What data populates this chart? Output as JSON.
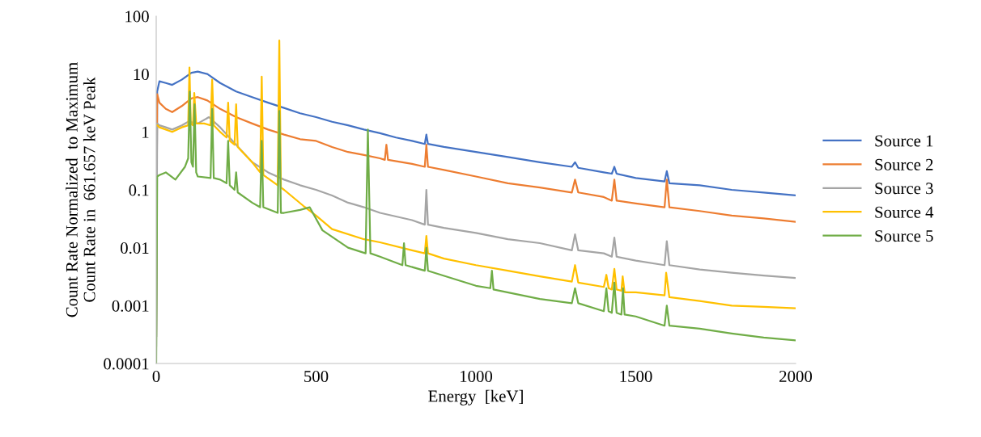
{
  "chart_data": {
    "type": "line",
    "xlabel": "Energy  [keV]",
    "ylabel": "Count Rate Normalized  to Maximum\nCount Rate in  661.657 keV Peak",
    "log": "y",
    "grid": false,
    "legend": "right",
    "marker": "none",
    "line_style": "solid",
    "xlim": [
      0,
      2000
    ],
    "xticks": [
      0,
      500,
      1000,
      1500,
      2000
    ],
    "ylim": [
      0.0001,
      100
    ],
    "yticks": [
      {
        "value": 0.0001,
        "label": "0.0001"
      },
      {
        "value": 0.001,
        "label": "0.001"
      },
      {
        "value": 0.01,
        "label": "0.01"
      },
      {
        "value": 0.1,
        "label": "0.1"
      },
      {
        "value": 1,
        "label": "1"
      },
      {
        "value": 10,
        "label": "10"
      },
      {
        "value": 100,
        "label": "100"
      }
    ],
    "series": [
      {
        "name": "Source 1",
        "color": "#4472c4",
        "x": [
          0,
          3,
          10,
          30,
          50,
          80,
          110,
          130,
          160,
          200,
          250,
          300,
          350,
          400,
          450,
          500,
          550,
          600,
          650,
          700,
          750,
          800,
          840,
          845,
          850,
          900,
          1000,
          1100,
          1200,
          1300,
          1310,
          1320,
          1400,
          1425,
          1433,
          1440,
          1500,
          1590,
          1597,
          1605,
          1700,
          1800,
          1900,
          2000
        ],
        "values": [
          0.0003,
          5,
          7.5,
          7,
          6.5,
          8,
          10.5,
          11,
          10,
          7,
          5,
          4,
          3.2,
          2.6,
          2.1,
          1.8,
          1.5,
          1.3,
          1.1,
          0.95,
          0.8,
          0.7,
          0.62,
          0.9,
          0.62,
          0.55,
          0.45,
          0.37,
          0.3,
          0.25,
          0.3,
          0.24,
          0.2,
          0.19,
          0.25,
          0.19,
          0.16,
          0.14,
          0.21,
          0.13,
          0.12,
          0.1,
          0.09,
          0.08
        ]
      },
      {
        "name": "Source 2",
        "color": "#ed7d31",
        "x": [
          0,
          3,
          10,
          30,
          50,
          80,
          110,
          130,
          160,
          200,
          250,
          300,
          350,
          400,
          450,
          500,
          550,
          600,
          650,
          700,
          715,
          720,
          725,
          800,
          840,
          845,
          850,
          900,
          1000,
          1100,
          1200,
          1300,
          1310,
          1320,
          1400,
          1425,
          1433,
          1440,
          1500,
          1590,
          1597,
          1605,
          1700,
          1800,
          1900,
          2000
        ],
        "values": [
          0.0003,
          4.5,
          3.2,
          2.5,
          2.2,
          2.8,
          3.8,
          4,
          3.5,
          2.5,
          1.8,
          1.4,
          1.1,
          0.9,
          0.75,
          0.7,
          0.55,
          0.45,
          0.4,
          0.35,
          0.33,
          0.6,
          0.33,
          0.28,
          0.25,
          0.6,
          0.25,
          0.22,
          0.17,
          0.13,
          0.11,
          0.09,
          0.15,
          0.09,
          0.075,
          0.065,
          0.15,
          0.065,
          0.058,
          0.05,
          0.15,
          0.05,
          0.043,
          0.036,
          0.032,
          0.028
        ]
      },
      {
        "name": "Source 3",
        "color": "#a5a5a5",
        "x": [
          0,
          3,
          10,
          30,
          50,
          80,
          100,
          130,
          165,
          200,
          250,
          300,
          350,
          400,
          450,
          500,
          550,
          600,
          650,
          700,
          800,
          840,
          845,
          850,
          900,
          1000,
          1100,
          1200,
          1300,
          1310,
          1320,
          1400,
          1425,
          1433,
          1440,
          1500,
          1590,
          1597,
          1605,
          1700,
          1800,
          1900,
          2000
        ],
        "values": [
          0.0002,
          1.4,
          1.3,
          1.2,
          1.1,
          1.3,
          1.5,
          1.4,
          1.8,
          1.2,
          0.6,
          0.3,
          0.2,
          0.15,
          0.12,
          0.1,
          0.08,
          0.06,
          0.05,
          0.04,
          0.03,
          0.025,
          0.1,
          0.025,
          0.022,
          0.018,
          0.014,
          0.012,
          0.009,
          0.017,
          0.009,
          0.008,
          0.007,
          0.015,
          0.007,
          0.006,
          0.005,
          0.013,
          0.005,
          0.0042,
          0.0037,
          0.0033,
          0.003
        ]
      },
      {
        "name": "Source 4",
        "color": "#ffc000",
        "x": [
          3,
          10,
          30,
          50,
          80,
          100,
          104,
          108,
          115,
          119,
          125,
          150,
          170,
          175,
          180,
          200,
          220,
          225,
          230,
          245,
          250,
          255,
          300,
          325,
          330,
          335,
          380,
          385,
          390,
          400,
          460,
          500,
          550,
          650,
          700,
          800,
          840,
          845,
          850,
          900,
          1000,
          1100,
          1200,
          1300,
          1310,
          1320,
          1400,
          1408,
          1415,
          1425,
          1433,
          1440,
          1455,
          1459,
          1465,
          1500,
          1590,
          1595,
          1605,
          1700,
          1800,
          1900,
          2000
        ],
        "values": [
          1.3,
          1.2,
          1.1,
          1,
          1.2,
          1.3,
          13,
          1.4,
          1.3,
          4.7,
          1.4,
          1.4,
          1.3,
          8,
          1.3,
          1,
          0.8,
          3.2,
          0.7,
          0.6,
          3,
          0.55,
          0.3,
          0.2,
          9,
          0.18,
          0.12,
          38,
          0.11,
          0.1,
          0.053,
          0.036,
          0.021,
          0.014,
          0.0124,
          0.009,
          0.008,
          0.016,
          0.008,
          0.0065,
          0.005,
          0.004,
          0.0032,
          0.0026,
          0.005,
          0.0025,
          0.0021,
          0.0034,
          0.002,
          0.0019,
          0.0043,
          0.0019,
          0.0018,
          0.0032,
          0.0017,
          0.0017,
          0.0015,
          0.0037,
          0.0014,
          0.0012,
          0.001,
          0.00095,
          0.0009
        ]
      },
      {
        "name": "Source 5",
        "color": "#70ad47",
        "x": [
          0,
          3,
          10,
          30,
          60,
          90,
          100,
          105,
          110,
          115,
          120,
          125,
          130,
          170,
          175,
          180,
          200,
          220,
          225,
          230,
          245,
          250,
          255,
          300,
          325,
          330,
          335,
          380,
          385,
          390,
          400,
          450,
          480,
          520,
          600,
          655,
          662,
          670,
          700,
          770,
          775,
          780,
          840,
          845,
          850,
          1000,
          1045,
          1050,
          1055,
          1200,
          1300,
          1310,
          1320,
          1400,
          1408,
          1415,
          1425,
          1433,
          1440,
          1455,
          1460,
          1465,
          1500,
          1590,
          1597,
          1605,
          1700,
          1800,
          1900,
          2000
        ],
        "values": [
          0.0001,
          0.17,
          0.18,
          0.2,
          0.15,
          0.25,
          0.35,
          5,
          0.3,
          0.25,
          3,
          0.2,
          0.17,
          0.16,
          2.5,
          0.16,
          0.15,
          0.13,
          0.7,
          0.12,
          0.1,
          0.2,
          0.09,
          0.06,
          0.05,
          0.7,
          0.05,
          0.04,
          2.3,
          0.04,
          0.04,
          0.045,
          0.05,
          0.02,
          0.01,
          0.008,
          1.1,
          0.008,
          0.007,
          0.005,
          0.012,
          0.005,
          0.004,
          0.01,
          0.004,
          0.0022,
          0.002,
          0.004,
          0.0019,
          0.0013,
          0.0011,
          0.002,
          0.0011,
          0.0008,
          0.002,
          0.0008,
          0.00075,
          0.0025,
          0.00075,
          0.0007,
          0.002,
          0.0007,
          0.00065,
          0.00045,
          0.001,
          0.00045,
          0.0004,
          0.00033,
          0.00028,
          0.00025
        ]
      }
    ]
  }
}
